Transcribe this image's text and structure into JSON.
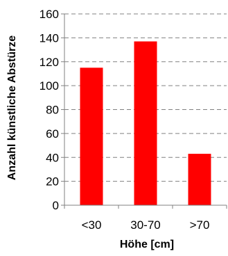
{
  "chart_data": {
    "type": "bar",
    "categories": [
      "<30",
      "30-70",
      ">70"
    ],
    "values": [
      115,
      137,
      43
    ],
    "title": "",
    "xlabel": "Höhe [cm]",
    "ylabel": "Anzahl künstliche Abstürze",
    "ylim": [
      0,
      160
    ],
    "ytick_step": 20,
    "yticks": [
      "0",
      "20",
      "40",
      "60",
      "80",
      "100",
      "120",
      "140",
      "160"
    ],
    "grid": true,
    "legend": "none",
    "colors": {
      "bar": "#ff0000",
      "grid": "#808080",
      "axis": "#808080"
    }
  }
}
